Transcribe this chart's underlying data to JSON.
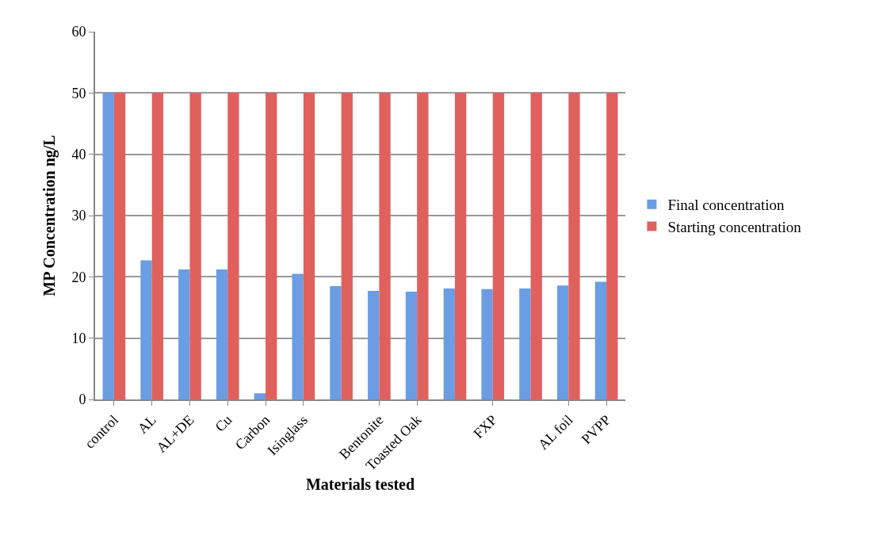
{
  "chart_data": {
    "type": "bar",
    "xlabel": "Materials tested",
    "ylabel": "MP Concentration ng/L",
    "categories": [
      "control",
      "AL",
      "AL+DE",
      "Cu",
      "Carbon",
      "Isinglass",
      null,
      "Bentonite",
      "Toasted Oak",
      null,
      "FXP",
      null,
      "AL foil",
      "PVPP"
    ],
    "series": [
      {
        "name": "Final concentration",
        "color": "#6a9de4",
        "values": [
          50,
          22.7,
          21.2,
          21.2,
          1,
          20.5,
          18.5,
          17.7,
          17.6,
          18.1,
          18,
          18.1,
          18.6,
          19.2
        ]
      },
      {
        "name": "Starting concentration",
        "color": "#e0605e",
        "values": [
          50,
          50,
          50,
          50,
          50,
          50,
          50,
          50,
          50,
          50,
          50,
          50,
          50,
          50
        ]
      }
    ],
    "ylim": [
      0,
      60
    ],
    "yticks": [
      0,
      10,
      20,
      30,
      40,
      50,
      60
    ],
    "grid": "y",
    "legend": "right"
  }
}
